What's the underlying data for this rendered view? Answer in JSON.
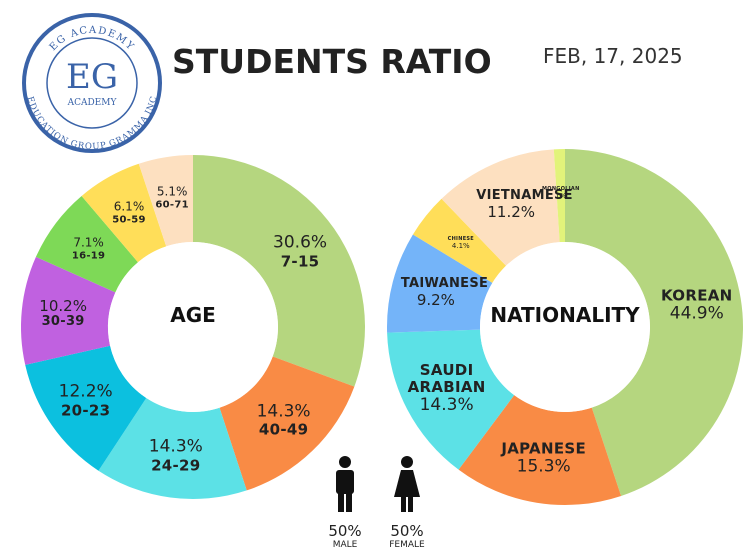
{
  "header": {
    "title": "STUDENTS RATIO",
    "date": "FEB, 17, 2025",
    "logo": {
      "top": "EG ACADEMY",
      "mark": "EG",
      "sub": "ACADEMY",
      "bottom": "EDUCATION GROUP GRAMMA INC"
    }
  },
  "chart_data": [
    {
      "type": "donut",
      "title": "AGE",
      "categories": [
        "7-15",
        "40-49",
        "24-29",
        "20-23",
        "30-39",
        "16-19",
        "50-59",
        "60-71"
      ],
      "values": [
        30.6,
        14.3,
        14.3,
        12.2,
        10.2,
        7.1,
        6.1,
        5.1
      ],
      "value_labels": [
        "30.6%",
        "14.3%",
        "14.3%",
        "12.2%",
        "10.2%",
        "7.1%",
        "6.1%",
        "5.1%"
      ],
      "colors": [
        "#b5d67f",
        "#f98b45",
        "#5ce1e6",
        "#0cc0df",
        "#c061e0",
        "#7ed957",
        "#ffde59",
        "#fde0c0"
      ]
    },
    {
      "type": "donut",
      "title": "NATIONALITY",
      "categories": [
        "KOREAN",
        "JAPANESE",
        "SAUDI ARABIAN",
        "TAIWANESE",
        "CHINESE",
        "VIETNAMESE",
        "MONGOLIAN"
      ],
      "values": [
        44.9,
        15.3,
        14.3,
        9.2,
        4.1,
        11.2,
        1
      ],
      "value_labels": [
        "44.9%",
        "15.3%",
        "14.3%",
        "9.2%",
        "4.1%",
        "11.2%",
        "1%"
      ],
      "colors": [
        "#b5d67f",
        "#f98b45",
        "#5ce1e6",
        "#74b4f9",
        "#ffde59",
        "#fde0c0",
        "#e2f37a"
      ]
    }
  ],
  "gender": [
    {
      "share": "50%",
      "label": "MALE"
    },
    {
      "share": "50%",
      "label": "FEMALE"
    }
  ]
}
